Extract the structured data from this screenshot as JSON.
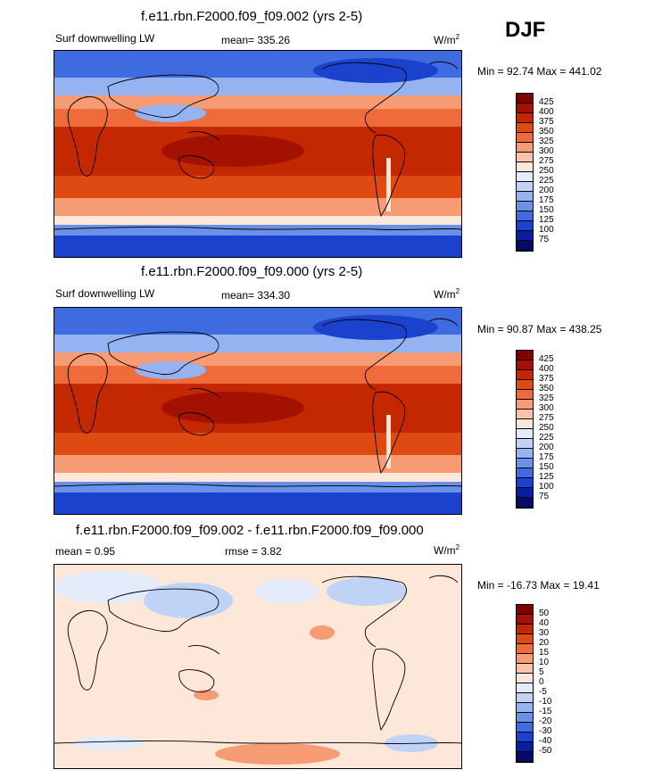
{
  "season": "DJF",
  "units_base": "W/m",
  "units_exp": "2",
  "panels": [
    {
      "title": "f.e11.rbn.F2000.f09_f09.002 (yrs 2-5)",
      "left_label": "Surf downwelling LW",
      "center_label": "mean= 335.26",
      "minmax": "Min =  92.74 Max = 441.02",
      "kind": "abs"
    },
    {
      "title": "f.e11.rbn.F2000.f09_f09.000 (yrs 2-5)",
      "left_label": "Surf downwelling LW",
      "center_label": "mean= 334.30",
      "minmax": "Min =  90.87 Max = 438.25",
      "kind": "abs"
    },
    {
      "title": "f.e11.rbn.F2000.f09_f09.002 - f.e11.rbn.F2000.f09_f09.000",
      "left_label": "mean =   0.95",
      "center_label": "rmse =   3.82",
      "minmax": "Min = -16.73 Max =  19.41",
      "kind": "diff"
    }
  ],
  "chart_data": [
    {
      "type": "heatmap",
      "title": "f.e11.rbn.F2000.f09_f09.002 (yrs 2-5)",
      "variable": "Surf downwelling LW",
      "units": "W/m^2",
      "mean": 335.26,
      "min": 92.74,
      "max": 441.02,
      "colorbar_levels": [
        425,
        400,
        375,
        350,
        325,
        300,
        275,
        250,
        225,
        200,
        175,
        150,
        125,
        100,
        75
      ]
    },
    {
      "type": "heatmap",
      "title": "f.e11.rbn.F2000.f09_f09.000 (yrs 2-5)",
      "variable": "Surf downwelling LW",
      "units": "W/m^2",
      "mean": 334.3,
      "min": 90.87,
      "max": 438.25,
      "colorbar_levels": [
        425,
        400,
        375,
        350,
        325,
        300,
        275,
        250,
        225,
        200,
        175,
        150,
        125,
        100,
        75
      ]
    },
    {
      "type": "heatmap",
      "title": "f.e11.rbn.F2000.f09_f09.002 - f.e11.rbn.F2000.f09_f09.000",
      "units": "W/m^2",
      "mean": 0.95,
      "rmse": 3.82,
      "min": -16.73,
      "max": 19.41,
      "colorbar_levels": [
        50,
        40,
        30,
        20,
        15,
        10,
        5,
        0,
        -5,
        -10,
        -15,
        -20,
        -30,
        -40,
        -50
      ]
    }
  ],
  "colors": {
    "abs_scale": [
      "#800000",
      "#a31100",
      "#c42800",
      "#dd4a12",
      "#ef6c3a",
      "#f79b74",
      "#fbc4a8",
      "#fde7d8",
      "#e4ecfb",
      "#bfd3f7",
      "#94b3f0",
      "#6a90e8",
      "#3f6be0",
      "#1b42cc",
      "#0a1fa0",
      "#020b6b"
    ],
    "diff_scale": [
      "#800000",
      "#a31100",
      "#c42800",
      "#dd4a12",
      "#ef6c3a",
      "#f79b74",
      "#fbc4a8",
      "#fde7d8",
      "#e4ecfb",
      "#bfd3f7",
      "#94b3f0",
      "#6a90e8",
      "#3f6be0",
      "#1b42cc",
      "#0a1fa0",
      "#020b6b"
    ]
  }
}
